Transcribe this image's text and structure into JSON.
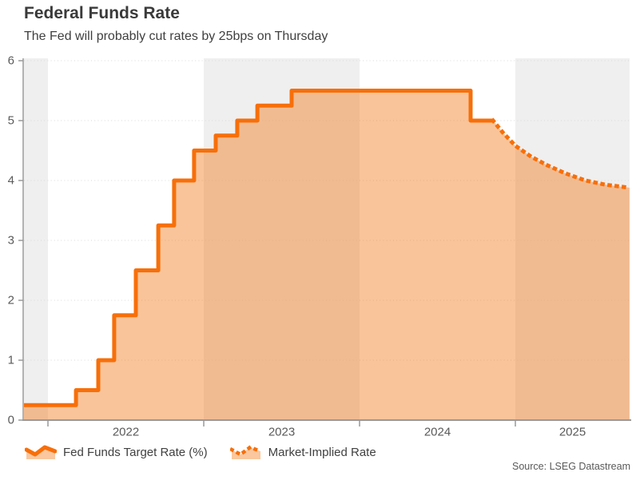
{
  "header": {
    "title": "Federal Funds Rate",
    "subtitle": "The Fed will probably cut rates by 25bps on Thursday"
  },
  "legend": {
    "fed_funds_label": "Fed Funds Target Rate (%)",
    "market_implied_label": "Market-Implied Rate"
  },
  "source": "Source: LSEG Datastream",
  "colors": {
    "line_orange": "#f76f0a",
    "area_fill": "rgba(245,130,40,0.47)",
    "year_band_gray": "#efefef",
    "gridline": "#d9d9d9",
    "axis": "#999999",
    "axis_label": "#5a5a5a"
  },
  "chart_data": {
    "type": "line",
    "subtype": "step-area with dotted market-implied forecast",
    "title": "Federal Funds Rate",
    "xlabel": "",
    "ylabel": "",
    "ylim": [
      0,
      6
    ],
    "yticks": [
      0,
      1,
      2,
      3,
      4,
      5,
      6
    ],
    "xticks": [
      2022,
      2023,
      2024,
      2025
    ],
    "x_domain": [
      2021.846,
      2025.733
    ],
    "grid": "horizontal-dotted",
    "legend_position": "bottom-left",
    "shaded_year_bands": [
      [
        2021.846,
        2022
      ],
      [
        2023,
        2024
      ],
      [
        2025,
        2025.733
      ]
    ],
    "series": [
      {
        "name": "Fed Funds Target Rate (%)",
        "style": "solid-step",
        "steps": [
          [
            2021.846,
            0.25
          ],
          [
            2022.18,
            0.5
          ],
          [
            2022.323,
            1.0
          ],
          [
            2022.425,
            1.75
          ],
          [
            2022.564,
            2.5
          ],
          [
            2022.708,
            3.25
          ],
          [
            2022.81,
            4.0
          ],
          [
            2022.938,
            4.5
          ],
          [
            2023.077,
            4.75
          ],
          [
            2023.215,
            5.0
          ],
          [
            2023.344,
            5.25
          ],
          [
            2023.564,
            5.5
          ],
          [
            2024.713,
            5.0
          ]
        ],
        "end_x": 2024.857
      },
      {
        "name": "Market-Implied Rate",
        "style": "dotted",
        "points": [
          [
            2024.857,
            5.0
          ],
          [
            2024.92,
            4.8
          ],
          [
            2025.0,
            4.58
          ],
          [
            2025.1,
            4.4
          ],
          [
            2025.2,
            4.26
          ],
          [
            2025.32,
            4.12
          ],
          [
            2025.45,
            4.0
          ],
          [
            2025.58,
            3.93
          ],
          [
            2025.733,
            3.88
          ]
        ]
      }
    ]
  }
}
